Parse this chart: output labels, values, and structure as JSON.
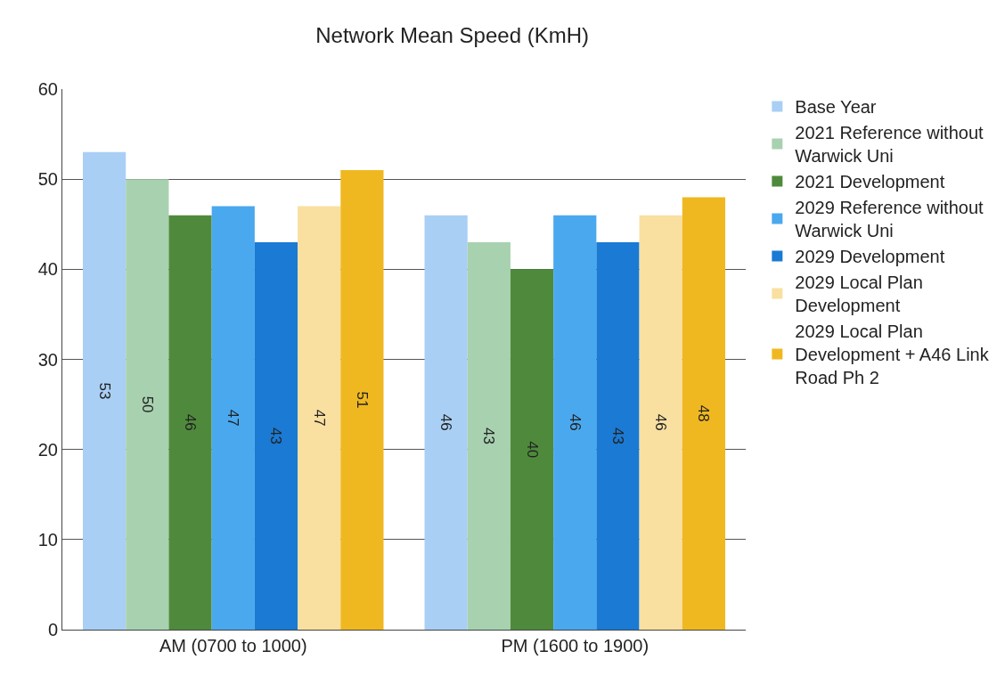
{
  "chart_data": {
    "type": "bar",
    "title": "Network Mean Speed (KmH)",
    "categories": [
      "AM (0700 to 1000)",
      "PM (1600 to 1900)"
    ],
    "series": [
      {
        "name": "Base Year",
        "color": "#a9cff5",
        "values": [
          53,
          46
        ]
      },
      {
        "name": "2021 Reference without Warwick Uni",
        "color": "#a8d1b0",
        "values": [
          50,
          43
        ]
      },
      {
        "name": "2021 Development",
        "color": "#4f8a3c",
        "values": [
          46,
          40
        ]
      },
      {
        "name": "2029 Reference without Warwick Uni",
        "color": "#4aa8ee",
        "values": [
          47,
          46
        ]
      },
      {
        "name": "2029 Development",
        "color": "#1a7ad4",
        "values": [
          43,
          43
        ]
      },
      {
        "name": "2029 Local Plan Development",
        "color": "#f9dfa0",
        "values": [
          47,
          46
        ]
      },
      {
        "name": "2029 Local Plan Development + A46 Link Road Ph 2",
        "color": "#f0b820",
        "values": [
          51,
          48
        ]
      }
    ],
    "data_labels": true,
    "ylim": [
      0,
      60
    ],
    "yticks": [
      0,
      10,
      20,
      30,
      40,
      50,
      60
    ],
    "grid": "y",
    "legend": "right"
  }
}
